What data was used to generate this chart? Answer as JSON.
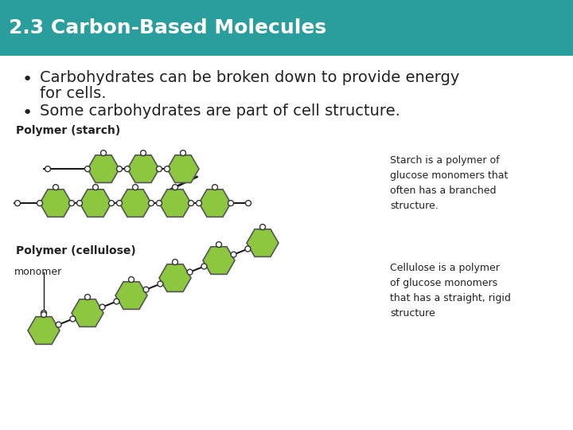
{
  "title": "2.3 Carbon-Based Molecules",
  "title_color": "#FFFFFF",
  "header_bg": "#2a9d9d",
  "bg_color": "#FFFFFF",
  "bullet1_line1": "Carbohydrates can be broken down to provide energy",
  "bullet1_line2": "for cells.",
  "bullet2": "Some carbohydrates are part of cell structure.",
  "label_starch": "Polymer (starch)",
  "label_cellulose": "Polymer (cellulose)",
  "label_monomer": "monomer",
  "text_starch": "Starch is a polymer of\nglucose monomers that\noften has a branched\nstructure.",
  "text_cellulose": "Cellulose is a polymer\nof glucose monomers\nthat has a straight, rigid\nstructure",
  "hex_color": "#8DC63F",
  "hex_edge_color": "#555555",
  "connector_color": "#1a1a1a",
  "dot_color": "#FFFFFF",
  "dot_edge_color": "#333333",
  "title_fontsize": 18,
  "bullet_fontsize": 14,
  "label_fontsize": 10,
  "desc_fontsize": 9
}
